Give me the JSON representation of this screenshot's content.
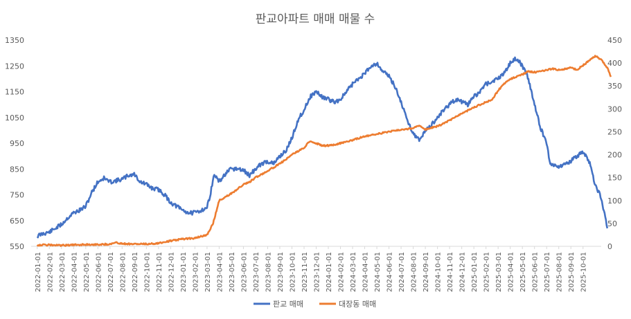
{
  "chart_data": {
    "type": "line",
    "title": "판교아파트 매매 매물 수",
    "x_labels": [
      "2022-01-01",
      "2022-02-01",
      "2022-03-01",
      "2022-04-01",
      "2022-05-01",
      "2022-06-01",
      "2022-07-01",
      "2022-08-01",
      "2022-09-01",
      "2022-10-01",
      "2022-11-01",
      "2022-12-01",
      "2023-01-01",
      "2023-02-01",
      "2023-03-01",
      "2023-04-01",
      "2023-05-01",
      "2023-06-01",
      "2023-07-01",
      "2023-08-01",
      "2023-09-01",
      "2023-10-01",
      "2023-11-01",
      "2023-12-01",
      "2024-01-01",
      "2024-02-01",
      "2024-03-01",
      "2024-04-01",
      "2024-05-01",
      "2024-06-01",
      "2024-07-01",
      "2024-08-01",
      "2024-09-01",
      "2024-10-01",
      "2024-11-01",
      "2024-12-01",
      "2025-01-01",
      "2025-02-01",
      "2025-03-01",
      "2025-04-01",
      "2025-05-01",
      "2025-06-01",
      "2025-07-01",
      "2025-08-01",
      "2025-09-01",
      "2025-10-01"
    ],
    "y_left": {
      "ticks": [
        "1350",
        "1250",
        "1150",
        "1050",
        "950",
        "850",
        "750",
        "650",
        "550"
      ],
      "min": 550,
      "max": 1350
    },
    "y_right": {
      "ticks": [
        "450",
        "400",
        "350",
        "300",
        "250",
        "200",
        "150",
        "100",
        "50",
        "0"
      ],
      "min": 0,
      "max": 450
    },
    "series": [
      {
        "name": "판교 매매",
        "axis": "left",
        "color": "#4472C4",
        "points": [
          [
            0,
            590
          ],
          [
            0.5,
            600
          ],
          [
            1,
            605
          ],
          [
            1.5,
            620
          ],
          [
            2,
            635
          ],
          [
            2.5,
            660
          ],
          [
            3,
            680
          ],
          [
            3.5,
            690
          ],
          [
            4,
            705
          ],
          [
            4.5,
            760
          ],
          [
            5,
            800
          ],
          [
            5.5,
            815
          ],
          [
            6,
            800
          ],
          [
            6.5,
            805
          ],
          [
            7,
            810
          ],
          [
            7.5,
            825
          ],
          [
            8,
            830
          ],
          [
            8.5,
            800
          ],
          [
            9,
            790
          ],
          [
            9.5,
            775
          ],
          [
            10,
            770
          ],
          [
            10.5,
            750
          ],
          [
            11,
            720
          ],
          [
            11.5,
            705
          ],
          [
            12,
            690
          ],
          [
            12.5,
            680
          ],
          [
            13,
            680
          ],
          [
            13.5,
            690
          ],
          [
            14,
            700
          ],
          [
            14.3,
            760
          ],
          [
            14.6,
            830
          ],
          [
            15,
            800
          ],
          [
            15.5,
            830
          ],
          [
            16,
            850
          ],
          [
            16.5,
            850
          ],
          [
            17,
            845
          ],
          [
            17.5,
            825
          ],
          [
            18,
            850
          ],
          [
            18.5,
            870
          ],
          [
            19,
            880
          ],
          [
            19.5,
            870
          ],
          [
            20,
            900
          ],
          [
            20.5,
            920
          ],
          [
            21,
            970
          ],
          [
            21.5,
            1040
          ],
          [
            22,
            1080
          ],
          [
            22.5,
            1130
          ],
          [
            23,
            1150
          ],
          [
            23.5,
            1130
          ],
          [
            24,
            1120
          ],
          [
            24.5,
            1110
          ],
          [
            25,
            1120
          ],
          [
            25.5,
            1150
          ],
          [
            26,
            1180
          ],
          [
            26.5,
            1200
          ],
          [
            27,
            1220
          ],
          [
            27.5,
            1250
          ],
          [
            28,
            1260
          ],
          [
            28.5,
            1230
          ],
          [
            29,
            1210
          ],
          [
            29.5,
            1170
          ],
          [
            30,
            1110
          ],
          [
            30.5,
            1040
          ],
          [
            31,
            990
          ],
          [
            31.5,
            960
          ],
          [
            32,
            1000
          ],
          [
            32.5,
            1020
          ],
          [
            33,
            1050
          ],
          [
            33.5,
            1080
          ],
          [
            34,
            1100
          ],
          [
            34.5,
            1120
          ],
          [
            35,
            1110
          ],
          [
            35.5,
            1100
          ],
          [
            36,
            1130
          ],
          [
            36.5,
            1150
          ],
          [
            37,
            1180
          ],
          [
            37.5,
            1190
          ],
          [
            38,
            1200
          ],
          [
            38.5,
            1225
          ],
          [
            39,
            1260
          ],
          [
            39.5,
            1280
          ],
          [
            40,
            1250
          ],
          [
            40.5,
            1200
          ],
          [
            41,
            1100
          ],
          [
            41.5,
            1010
          ],
          [
            42,
            950
          ],
          [
            42.3,
            870
          ],
          [
            43,
            860
          ],
          [
            43.5,
            870
          ],
          [
            44,
            880
          ],
          [
            44.5,
            900
          ],
          [
            45,
            915
          ],
          [
            45.5,
            880
          ],
          [
            46,
            790
          ],
          [
            46.5,
            740
          ],
          [
            47,
            620
          ]
        ]
      },
      {
        "name": "대장동 매매",
        "axis": "right",
        "color": "#ED7D31",
        "points": [
          [
            0,
            3
          ],
          [
            1,
            3
          ],
          [
            2,
            2
          ],
          [
            3,
            3
          ],
          [
            4,
            4
          ],
          [
            5,
            4
          ],
          [
            6,
            5
          ],
          [
            6.5,
            8
          ],
          [
            7,
            6
          ],
          [
            8,
            5
          ],
          [
            9,
            5
          ],
          [
            10,
            7
          ],
          [
            11,
            12
          ],
          [
            12,
            16
          ],
          [
            13,
            18
          ],
          [
            14,
            25
          ],
          [
            14.5,
            50
          ],
          [
            15,
            100
          ],
          [
            16,
            115
          ],
          [
            16.5,
            125
          ],
          [
            17,
            135
          ],
          [
            17.5,
            140
          ],
          [
            18,
            150
          ],
          [
            19,
            165
          ],
          [
            20,
            180
          ],
          [
            21,
            200
          ],
          [
            22,
            215
          ],
          [
            22.5,
            230
          ],
          [
            23,
            225
          ],
          [
            23.5,
            220
          ],
          [
            24,
            220
          ],
          [
            24.5,
            222
          ],
          [
            25,
            225
          ],
          [
            26,
            232
          ],
          [
            27,
            240
          ],
          [
            28,
            245
          ],
          [
            29,
            250
          ],
          [
            30,
            255
          ],
          [
            31,
            257
          ],
          [
            31.5,
            265
          ],
          [
            32,
            255
          ],
          [
            33,
            262
          ],
          [
            33.5,
            268
          ],
          [
            34,
            275
          ],
          [
            35,
            290
          ],
          [
            36,
            303
          ],
          [
            37,
            315
          ],
          [
            37.5,
            320
          ],
          [
            38,
            340
          ],
          [
            38.5,
            355
          ],
          [
            39,
            365
          ],
          [
            40,
            375
          ],
          [
            40.5,
            382
          ],
          [
            41,
            380
          ],
          [
            42,
            385
          ],
          [
            42.5,
            387
          ],
          [
            43,
            385
          ],
          [
            44,
            390
          ],
          [
            44.5,
            385
          ],
          [
            45,
            395
          ],
          [
            45.5,
            405
          ],
          [
            46,
            415
          ],
          [
            46.5,
            408
          ],
          [
            47,
            390
          ],
          [
            47.3,
            370
          ]
        ]
      }
    ],
    "legend": {
      "position": "bottom",
      "items": [
        "판교 매매",
        "대장동 매매"
      ]
    },
    "grid": false
  }
}
